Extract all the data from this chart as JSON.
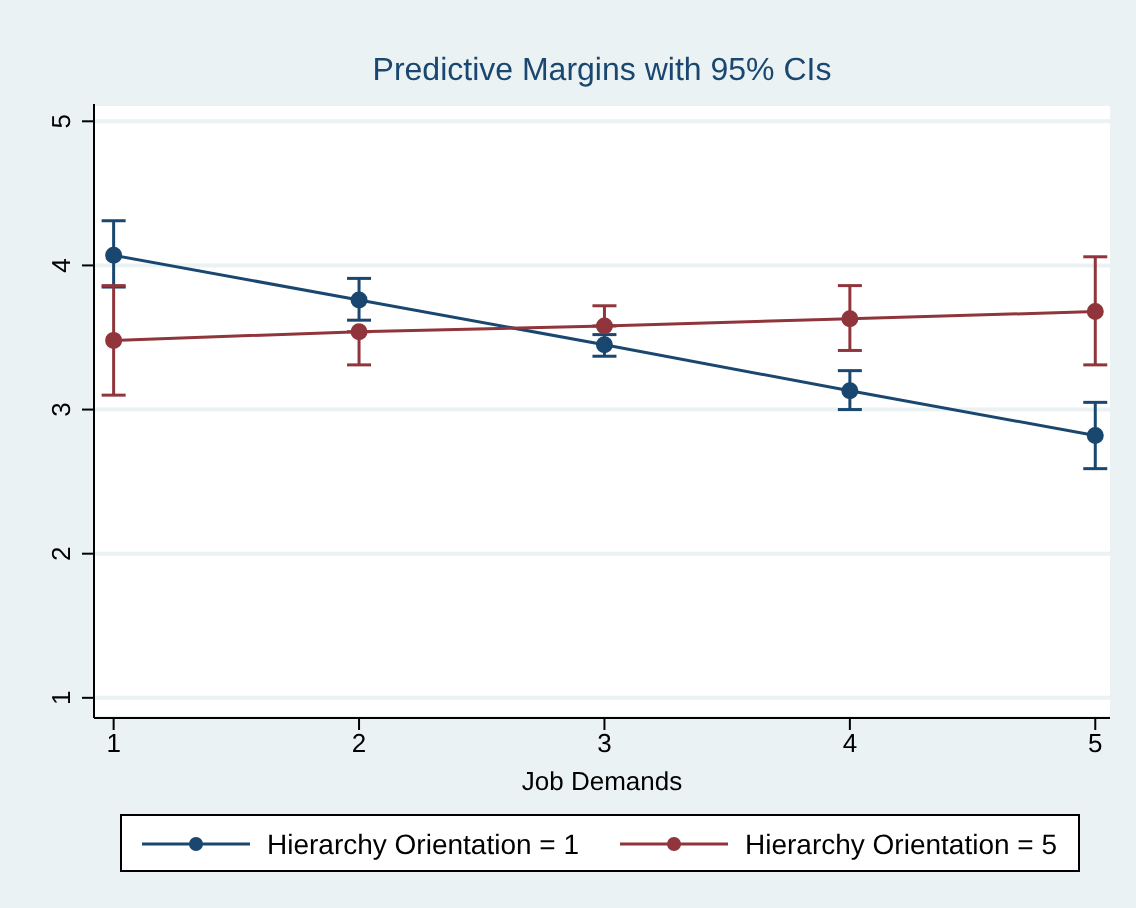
{
  "chart_data": {
    "type": "line",
    "title": "Predictive Margins with 95% CIs",
    "xlabel": "Job Demands",
    "x": [
      1,
      2,
      3,
      4,
      5
    ],
    "xlim": [
      0.92,
      5.06
    ],
    "xticks": [
      1,
      2,
      3,
      4,
      5
    ],
    "ylim": [
      0.86,
      5.12
    ],
    "yticks": [
      1,
      2,
      3,
      4,
      5
    ],
    "series": [
      {
        "name": "Hierarchy Orientation = 1",
        "color": "#1a476f",
        "values": [
          4.07,
          3.76,
          3.45,
          3.13,
          2.82
        ],
        "errors": [
          [
            3.85,
            4.31
          ],
          [
            3.62,
            3.91
          ],
          [
            3.37,
            3.52
          ],
          [
            3.0,
            3.27
          ],
          [
            2.59,
            3.05
          ]
        ]
      },
      {
        "name": "Hierarchy Orientation = 5",
        "color": "#90353b",
        "values": [
          3.48,
          3.54,
          3.58,
          3.63,
          3.68
        ],
        "errors": [
          [
            3.1,
            3.86
          ],
          [
            3.31,
            3.54
          ],
          [
            3.58,
            3.72
          ],
          [
            3.41,
            3.86
          ],
          [
            3.31,
            4.06
          ]
        ]
      }
    ],
    "grid": "y",
    "legend": "bottom",
    "marker": "circle",
    "line_style": "solid"
  }
}
